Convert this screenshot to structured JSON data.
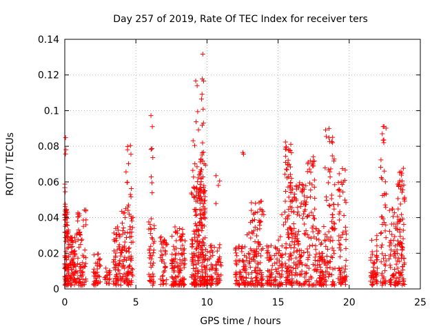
{
  "chart_data": {
    "type": "scatter",
    "title": "Day 257 of 2019, Rate Of TEC Index for receiver ters",
    "xlabel": "GPS time / hours",
    "ylabel": "ROTI / TECUs",
    "xlim": [
      0,
      25
    ],
    "ylim": [
      0,
      0.14
    ],
    "xticks": [
      0,
      5,
      10,
      15,
      20,
      25
    ],
    "xtick_labels": [
      "0",
      "5",
      "10",
      "15",
      "20",
      "25"
    ],
    "yticks": [
      0,
      0.02,
      0.04,
      0.06,
      0.08,
      0.1,
      0.12,
      0.14
    ],
    "ytick_labels": [
      "0",
      "0.02",
      "0.04",
      "0.06",
      "0.08",
      "0.1",
      "0.12",
      "0.14"
    ],
    "grid": true,
    "marker": "+",
    "color": "#ff0000",
    "series": [
      {
        "name": "ROTI",
        "clusters": [
          {
            "x_range": [
              0.0,
              0.3
            ],
            "y_max": 0.045,
            "n": 90
          },
          {
            "x_range": [
              0.0,
              0.1
            ],
            "y_max": 0.087,
            "n": 12,
            "y_min": 0.04
          },
          {
            "x_range": [
              0.35,
              0.8
            ],
            "y_max": 0.03,
            "n": 60
          },
          {
            "x_range": [
              0.8,
              1.5
            ],
            "y_max": 0.045,
            "n": 70
          },
          {
            "x_range": [
              2.0,
              2.5
            ],
            "y_max": 0.02,
            "n": 40
          },
          {
            "x_range": [
              2.8,
              3.2
            ],
            "y_max": 0.012,
            "n": 20
          },
          {
            "x_range": [
              3.4,
              4.0
            ],
            "y_max": 0.035,
            "n": 60
          },
          {
            "x_range": [
              4.0,
              4.8
            ],
            "y_max": 0.045,
            "n": 90
          },
          {
            "x_range": [
              4.3,
              4.7
            ],
            "y_max": 0.087,
            "n": 14,
            "y_min": 0.04
          },
          {
            "x_range": [
              5.9,
              6.3
            ],
            "y_max": 0.04,
            "n": 40
          },
          {
            "x_range": [
              6.0,
              6.2
            ],
            "y_max": 0.1,
            "n": 8,
            "y_min": 0.05
          },
          {
            "x_range": [
              6.7,
              7.2
            ],
            "y_max": 0.03,
            "n": 40
          },
          {
            "x_range": [
              7.5,
              8.5
            ],
            "y_max": 0.035,
            "n": 110
          },
          {
            "x_range": [
              8.9,
              9.5
            ],
            "y_max": 0.06,
            "n": 120
          },
          {
            "x_range": [
              9.0,
              9.5
            ],
            "y_max": 0.122,
            "n": 14,
            "y_min": 0.06
          },
          {
            "x_range": [
              9.5,
              9.9
            ],
            "y_max": 0.073,
            "n": 120
          },
          {
            "x_range": [
              9.6,
              9.8
            ],
            "y_max": 0.133,
            "n": 12,
            "y_min": 0.075
          },
          {
            "x_range": [
              9.9,
              11.0
            ],
            "y_max": 0.025,
            "n": 80
          },
          {
            "x_range": [
              10.6,
              10.9
            ],
            "y_max": 0.07,
            "n": 4,
            "y_min": 0.045
          },
          {
            "x_range": [
              12.0,
              12.8
            ],
            "y_max": 0.025,
            "n": 70
          },
          {
            "x_range": [
              12.8,
              14.0
            ],
            "y_max": 0.05,
            "n": 120
          },
          {
            "x_range": [
              12.5,
              12.7
            ],
            "y_max": 0.079,
            "n": 2,
            "y_min": 0.075
          },
          {
            "x_range": [
              14.2,
              14.6
            ],
            "y_max": 0.025,
            "n": 40
          },
          {
            "x_range": [
              14.7,
              15.3
            ],
            "y_max": 0.03,
            "n": 50
          },
          {
            "x_range": [
              15.2,
              15.5
            ],
            "y_max": 0.07,
            "n": 4,
            "y_min": 0.03
          },
          {
            "x_range": [
              15.5,
              16.0
            ],
            "y_max": 0.084,
            "n": 110
          },
          {
            "x_range": [
              16.0,
              17.0
            ],
            "y_max": 0.06,
            "n": 110
          },
          {
            "x_range": [
              17.0,
              17.6
            ],
            "y_max": 0.075,
            "n": 60
          },
          {
            "x_range": [
              17.6,
              18.3
            ],
            "y_max": 0.035,
            "n": 70
          },
          {
            "x_range": [
              18.3,
              19.0
            ],
            "y_max": 0.093,
            "n": 80
          },
          {
            "x_range": [
              19.2,
              19.8
            ],
            "y_max": 0.07,
            "n": 70
          },
          {
            "x_range": [
              21.5,
              22.0
            ],
            "y_max": 0.03,
            "n": 50
          },
          {
            "x_range": [
              22.2,
              22.6
            ],
            "y_max": 0.097,
            "n": 50
          },
          {
            "x_range": [
              22.8,
              23.4
            ],
            "y_max": 0.045,
            "n": 60
          },
          {
            "x_range": [
              23.4,
              23.9
            ],
            "y_max": 0.068,
            "n": 80
          }
        ]
      }
    ]
  }
}
